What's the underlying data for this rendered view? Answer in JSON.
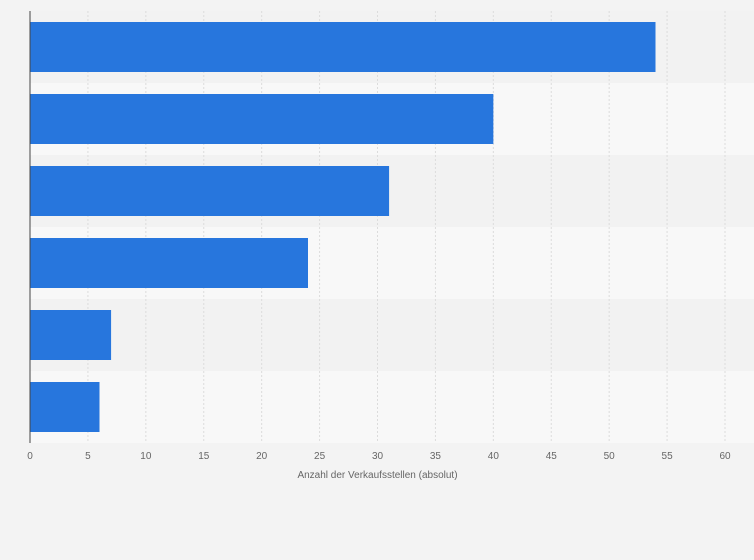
{
  "chart_data": {
    "type": "bar",
    "orientation": "horizontal",
    "categories": [
      "",
      "",
      "",
      "",
      "",
      ""
    ],
    "values": [
      54,
      40,
      31,
      24,
      7,
      6
    ],
    "title": "",
    "xlabel": "Anzahl der Verkaufsstellen (absolut)",
    "ylabel": "",
    "xlim": [
      0,
      60
    ],
    "xticks": [
      "0",
      "5",
      "10",
      "15",
      "20",
      "25",
      "30",
      "35",
      "40",
      "45",
      "50",
      "55",
      "60"
    ],
    "grid": true,
    "legend": "none",
    "colors": {
      "bar": "#2776dd",
      "band_dark": "#f2f2f2",
      "band_light": "#f8f8f8",
      "grid": "#dcdcdc",
      "axis": "#444444",
      "background": "#f3f3f3"
    }
  }
}
